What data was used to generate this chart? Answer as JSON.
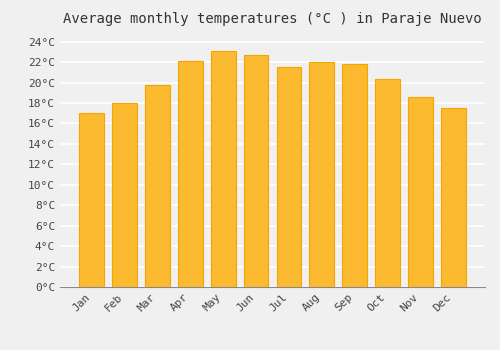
{
  "title": "Average monthly temperatures (°C ) in Paraje Nuevo",
  "months": [
    "Jan",
    "Feb",
    "Mar",
    "Apr",
    "May",
    "Jun",
    "Jul",
    "Aug",
    "Sep",
    "Oct",
    "Nov",
    "Dec"
  ],
  "values": [
    17.0,
    18.0,
    19.8,
    22.1,
    23.1,
    22.7,
    21.5,
    22.0,
    21.8,
    20.4,
    18.6,
    17.5
  ],
  "bar_color_face": "#FBBA30",
  "bar_color_edge": "#F5A500",
  "ylim": [
    0,
    25
  ],
  "yticks": [
    0,
    2,
    4,
    6,
    8,
    10,
    12,
    14,
    16,
    18,
    20,
    22,
    24
  ],
  "ytick_labels": [
    "0°C",
    "2°C",
    "4°C",
    "6°C",
    "8°C",
    "10°C",
    "12°C",
    "14°C",
    "16°C",
    "18°C",
    "20°C",
    "22°C",
    "24°C"
  ],
  "background_color": "#f0f0f0",
  "plot_bg_color": "#f0f0f0",
  "grid_color": "#ffffff",
  "title_fontsize": 10,
  "tick_fontsize": 8,
  "bar_width": 0.75,
  "spine_color": "#888888"
}
